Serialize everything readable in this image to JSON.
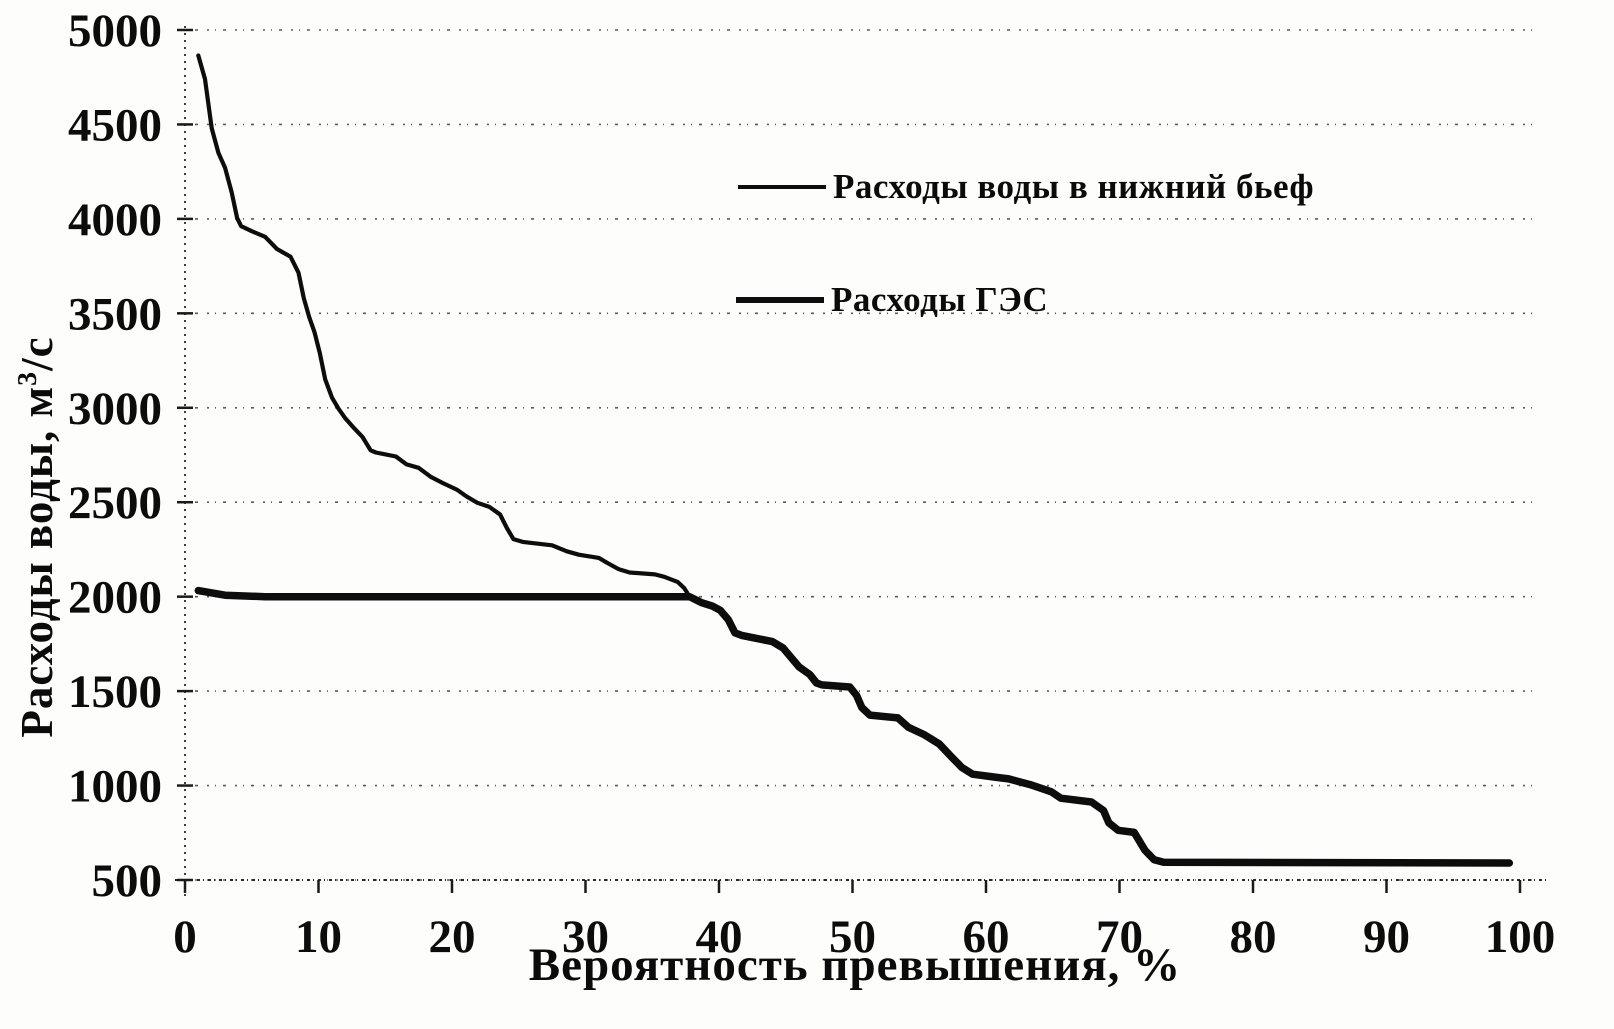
{
  "figure": {
    "background_color": "#fdfdfc",
    "ink_color": "#0d0d0d",
    "gridline_color": "#4a4a4a"
  },
  "chart_data": {
    "type": "line",
    "title": "",
    "xlabel": "Вероятность превышения, %",
    "ylabel": "Расходы воды, м3/с",
    "ylabel_parts": {
      "prefix": "Расходы воды, м",
      "sup": "3",
      "suffix": "/с"
    },
    "xlim": [
      0,
      100
    ],
    "ylim": [
      500,
      5000
    ],
    "x_ticks": [
      0,
      10,
      20,
      30,
      40,
      50,
      60,
      70,
      80,
      90,
      100
    ],
    "y_ticks": [
      500,
      1000,
      1500,
      2000,
      2500,
      3000,
      3500,
      4000,
      4500,
      5000
    ],
    "grid": "horizontal-dotted",
    "legend": {
      "box": false,
      "position": "upper-center"
    },
    "series": [
      {
        "name": "Расходы воды в нижний бьеф",
        "stroke_width": 4.2,
        "points": [
          [
            1,
            4865
          ],
          [
            1.5,
            4740
          ],
          [
            2,
            4480
          ],
          [
            2.5,
            4350
          ],
          [
            3,
            4270
          ],
          [
            3.5,
            4140
          ],
          [
            3.9,
            4005
          ],
          [
            4.2,
            3962
          ],
          [
            5,
            3935
          ],
          [
            6,
            3905
          ],
          [
            6.9,
            3840
          ],
          [
            7.9,
            3800
          ],
          [
            8.5,
            3715
          ],
          [
            8.9,
            3580
          ],
          [
            9.3,
            3480
          ],
          [
            9.7,
            3400
          ],
          [
            10.1,
            3290
          ],
          [
            10.5,
            3150
          ],
          [
            11,
            3055
          ],
          [
            11.5,
            2995
          ],
          [
            12,
            2945
          ],
          [
            12.7,
            2890
          ],
          [
            13.3,
            2845
          ],
          [
            13.9,
            2775
          ],
          [
            14.3,
            2763
          ],
          [
            15.8,
            2742
          ],
          [
            16.6,
            2700
          ],
          [
            17.5,
            2682
          ],
          [
            18.4,
            2635
          ],
          [
            19.3,
            2602
          ],
          [
            20.4,
            2565
          ],
          [
            21.1,
            2530
          ],
          [
            21.9,
            2497
          ],
          [
            22.8,
            2475
          ],
          [
            23.6,
            2435
          ],
          [
            24.1,
            2365
          ],
          [
            24.6,
            2305
          ],
          [
            25.3,
            2290
          ],
          [
            27.5,
            2272
          ],
          [
            28.6,
            2240
          ],
          [
            29.5,
            2222
          ],
          [
            31,
            2205
          ],
          [
            31.6,
            2180
          ],
          [
            32.5,
            2145
          ],
          [
            33.3,
            2128
          ],
          [
            35.2,
            2118
          ],
          [
            35.9,
            2105
          ],
          [
            36.9,
            2078
          ],
          [
            37.4,
            2045
          ],
          [
            37.8,
            2000
          ],
          [
            38.7,
            1968
          ],
          [
            39.5,
            1950
          ],
          [
            40.1,
            1928
          ],
          [
            40.7,
            1878
          ],
          [
            41.2,
            1808
          ],
          [
            41.7,
            1795
          ],
          [
            44,
            1762
          ],
          [
            44.8,
            1728
          ],
          [
            45.4,
            1678
          ],
          [
            46,
            1628
          ],
          [
            46.8,
            1588
          ],
          [
            47.3,
            1543
          ],
          [
            47.7,
            1533
          ],
          [
            49.8,
            1522
          ],
          [
            50.3,
            1478
          ],
          [
            50.7,
            1413
          ],
          [
            51.3,
            1373
          ],
          [
            53.4,
            1358
          ],
          [
            54.2,
            1308
          ],
          [
            55.4,
            1268
          ],
          [
            56.5,
            1220
          ],
          [
            57.4,
            1153
          ],
          [
            58.2,
            1095
          ],
          [
            59,
            1060
          ],
          [
            60.8,
            1043
          ],
          [
            61.7,
            1035
          ],
          [
            63.3,
            1005
          ],
          [
            64.9,
            967
          ],
          [
            65.6,
            933
          ],
          [
            67.9,
            913
          ],
          [
            68.8,
            868
          ],
          [
            69.2,
            803
          ],
          [
            69.9,
            763
          ],
          [
            71.1,
            752
          ],
          [
            71.9,
            658
          ],
          [
            72.6,
            607
          ],
          [
            73.3,
            594
          ],
          [
            99.2,
            590
          ]
        ]
      },
      {
        "name": "Расходы ГЭС",
        "stroke_width": 7.5,
        "points": [
          [
            1,
            2032
          ],
          [
            3,
            2008
          ],
          [
            6,
            2000
          ],
          [
            37.8,
            2000
          ],
          [
            38.7,
            1968
          ],
          [
            39.5,
            1950
          ],
          [
            40.1,
            1928
          ],
          [
            40.7,
            1878
          ],
          [
            41.2,
            1808
          ],
          [
            41.7,
            1795
          ],
          [
            44,
            1762
          ],
          [
            44.8,
            1728
          ],
          [
            45.4,
            1678
          ],
          [
            46,
            1628
          ],
          [
            46.8,
            1588
          ],
          [
            47.3,
            1543
          ],
          [
            47.7,
            1533
          ],
          [
            49.8,
            1522
          ],
          [
            50.3,
            1478
          ],
          [
            50.7,
            1413
          ],
          [
            51.3,
            1373
          ],
          [
            53.4,
            1358
          ],
          [
            54.2,
            1308
          ],
          [
            55.4,
            1268
          ],
          [
            56.5,
            1220
          ],
          [
            57.4,
            1153
          ],
          [
            58.2,
            1095
          ],
          [
            59,
            1060
          ],
          [
            60.8,
            1043
          ],
          [
            61.7,
            1035
          ],
          [
            63.3,
            1005
          ],
          [
            64.9,
            967
          ],
          [
            65.6,
            933
          ],
          [
            67.9,
            913
          ],
          [
            68.8,
            868
          ],
          [
            69.2,
            803
          ],
          [
            69.9,
            763
          ],
          [
            71.1,
            752
          ],
          [
            71.9,
            658
          ],
          [
            72.6,
            607
          ],
          [
            73.3,
            594
          ],
          [
            99.2,
            590
          ]
        ]
      }
    ]
  }
}
